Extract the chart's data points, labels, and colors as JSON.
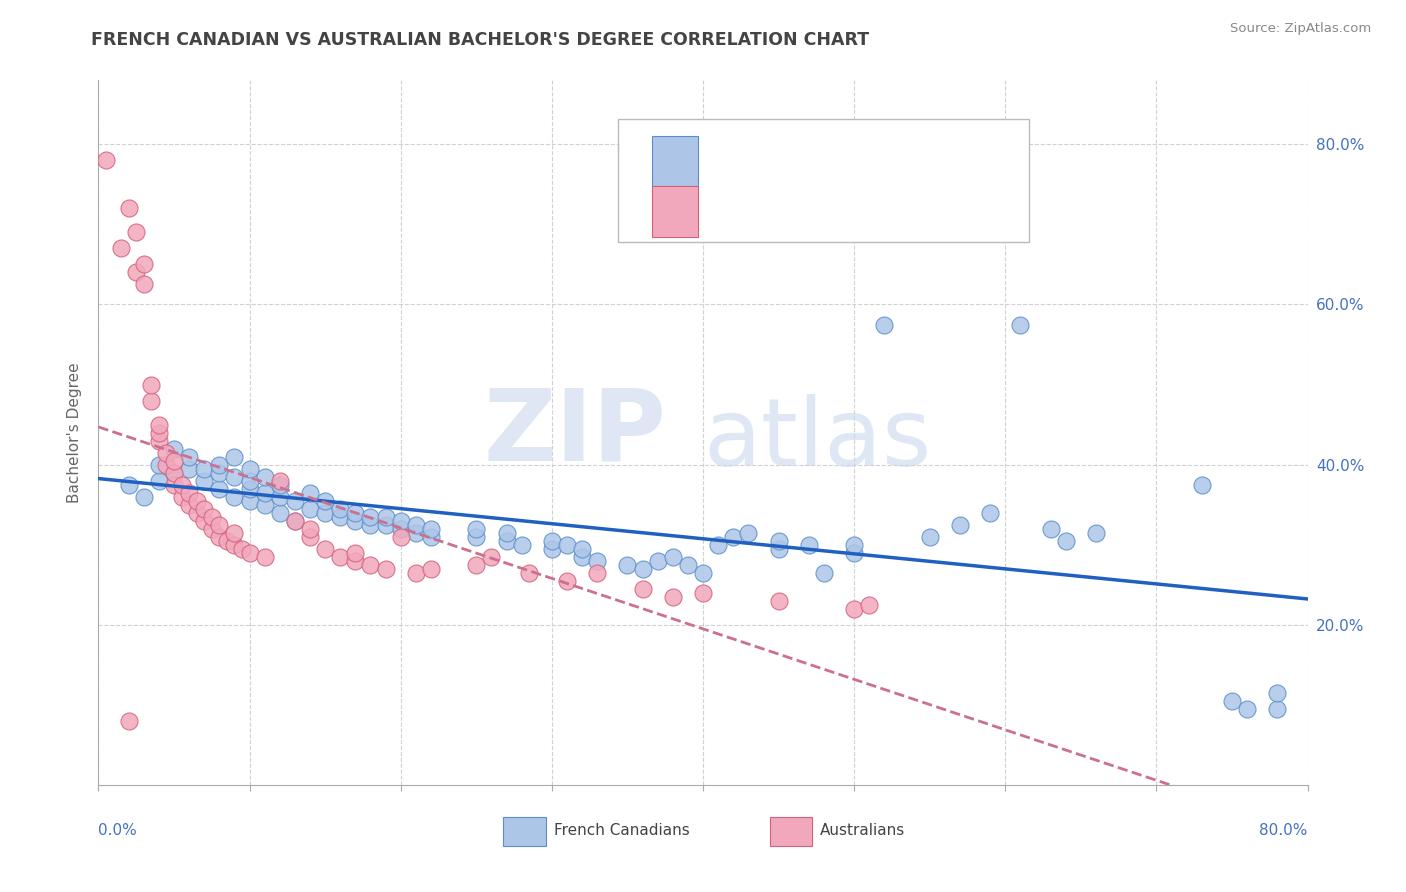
{
  "title": "FRENCH CANADIAN VS BACHELOR'S DEGREE CORRELATION CHART",
  "title_full": "FRENCH CANADIAN VS AUSTRALIAN BACHELOR'S DEGREE CORRELATION CHART",
  "source": "Source: ZipAtlas.com",
  "ylabel": "Bachelor's Degree",
  "xlim": [
    0.0,
    0.8
  ],
  "ylim": [
    0.0,
    0.88
  ],
  "ytick_values": [
    0.2,
    0.4,
    0.6,
    0.8
  ],
  "color_blue": "#adc6e8",
  "color_pink": "#f2a8bc",
  "color_blue_edge": "#5b8ec9",
  "color_pink_edge": "#d4607a",
  "color_trend_blue": "#2060c0",
  "color_trend_pink": "#cc7090",
  "watermark_zip": "ZIP",
  "watermark_atlas": "atlas",
  "blue_points": [
    [
      0.02,
      0.375
    ],
    [
      0.03,
      0.36
    ],
    [
      0.04,
      0.38
    ],
    [
      0.04,
      0.4
    ],
    [
      0.05,
      0.39
    ],
    [
      0.05,
      0.42
    ],
    [
      0.06,
      0.395
    ],
    [
      0.06,
      0.41
    ],
    [
      0.07,
      0.38
    ],
    [
      0.07,
      0.395
    ],
    [
      0.08,
      0.37
    ],
    [
      0.08,
      0.39
    ],
    [
      0.08,
      0.4
    ],
    [
      0.09,
      0.36
    ],
    [
      0.09,
      0.385
    ],
    [
      0.09,
      0.41
    ],
    [
      0.1,
      0.355
    ],
    [
      0.1,
      0.37
    ],
    [
      0.1,
      0.38
    ],
    [
      0.1,
      0.395
    ],
    [
      0.11,
      0.35
    ],
    [
      0.11,
      0.365
    ],
    [
      0.11,
      0.385
    ],
    [
      0.12,
      0.34
    ],
    [
      0.12,
      0.36
    ],
    [
      0.12,
      0.375
    ],
    [
      0.13,
      0.33
    ],
    [
      0.13,
      0.355
    ],
    [
      0.14,
      0.345
    ],
    [
      0.14,
      0.365
    ],
    [
      0.15,
      0.34
    ],
    [
      0.15,
      0.355
    ],
    [
      0.16,
      0.335
    ],
    [
      0.16,
      0.345
    ],
    [
      0.17,
      0.33
    ],
    [
      0.17,
      0.34
    ],
    [
      0.18,
      0.325
    ],
    [
      0.18,
      0.335
    ],
    [
      0.19,
      0.325
    ],
    [
      0.19,
      0.335
    ],
    [
      0.2,
      0.32
    ],
    [
      0.2,
      0.33
    ],
    [
      0.21,
      0.315
    ],
    [
      0.21,
      0.325
    ],
    [
      0.22,
      0.31
    ],
    [
      0.22,
      0.32
    ],
    [
      0.25,
      0.31
    ],
    [
      0.25,
      0.32
    ],
    [
      0.27,
      0.305
    ],
    [
      0.27,
      0.315
    ],
    [
      0.28,
      0.3
    ],
    [
      0.3,
      0.295
    ],
    [
      0.3,
      0.305
    ],
    [
      0.31,
      0.3
    ],
    [
      0.32,
      0.285
    ],
    [
      0.32,
      0.295
    ],
    [
      0.33,
      0.28
    ],
    [
      0.35,
      0.275
    ],
    [
      0.36,
      0.27
    ],
    [
      0.37,
      0.28
    ],
    [
      0.38,
      0.285
    ],
    [
      0.39,
      0.275
    ],
    [
      0.4,
      0.265
    ],
    [
      0.41,
      0.3
    ],
    [
      0.42,
      0.31
    ],
    [
      0.43,
      0.315
    ],
    [
      0.45,
      0.295
    ],
    [
      0.45,
      0.305
    ],
    [
      0.47,
      0.3
    ],
    [
      0.48,
      0.265
    ],
    [
      0.5,
      0.29
    ],
    [
      0.5,
      0.3
    ],
    [
      0.52,
      0.575
    ],
    [
      0.55,
      0.31
    ],
    [
      0.57,
      0.325
    ],
    [
      0.59,
      0.34
    ],
    [
      0.61,
      0.575
    ],
    [
      0.63,
      0.32
    ],
    [
      0.64,
      0.305
    ],
    [
      0.66,
      0.315
    ],
    [
      0.73,
      0.375
    ],
    [
      0.75,
      0.105
    ],
    [
      0.76,
      0.095
    ],
    [
      0.78,
      0.095
    ],
    [
      0.78,
      0.115
    ]
  ],
  "pink_points": [
    [
      0.005,
      0.78
    ],
    [
      0.015,
      0.67
    ],
    [
      0.02,
      0.72
    ],
    [
      0.025,
      0.64
    ],
    [
      0.025,
      0.69
    ],
    [
      0.03,
      0.625
    ],
    [
      0.03,
      0.65
    ],
    [
      0.035,
      0.48
    ],
    [
      0.035,
      0.5
    ],
    [
      0.04,
      0.43
    ],
    [
      0.04,
      0.44
    ],
    [
      0.04,
      0.45
    ],
    [
      0.045,
      0.4
    ],
    [
      0.045,
      0.415
    ],
    [
      0.05,
      0.375
    ],
    [
      0.05,
      0.39
    ],
    [
      0.05,
      0.405
    ],
    [
      0.055,
      0.36
    ],
    [
      0.055,
      0.375
    ],
    [
      0.06,
      0.35
    ],
    [
      0.06,
      0.365
    ],
    [
      0.065,
      0.34
    ],
    [
      0.065,
      0.355
    ],
    [
      0.07,
      0.33
    ],
    [
      0.07,
      0.345
    ],
    [
      0.075,
      0.32
    ],
    [
      0.075,
      0.335
    ],
    [
      0.08,
      0.31
    ],
    [
      0.08,
      0.325
    ],
    [
      0.085,
      0.305
    ],
    [
      0.09,
      0.3
    ],
    [
      0.09,
      0.315
    ],
    [
      0.095,
      0.295
    ],
    [
      0.1,
      0.29
    ],
    [
      0.11,
      0.285
    ],
    [
      0.12,
      0.38
    ],
    [
      0.13,
      0.33
    ],
    [
      0.14,
      0.31
    ],
    [
      0.14,
      0.32
    ],
    [
      0.15,
      0.295
    ],
    [
      0.16,
      0.285
    ],
    [
      0.17,
      0.28
    ],
    [
      0.17,
      0.29
    ],
    [
      0.18,
      0.275
    ],
    [
      0.19,
      0.27
    ],
    [
      0.2,
      0.31
    ],
    [
      0.21,
      0.265
    ],
    [
      0.22,
      0.27
    ],
    [
      0.25,
      0.275
    ],
    [
      0.26,
      0.285
    ],
    [
      0.285,
      0.265
    ],
    [
      0.31,
      0.255
    ],
    [
      0.33,
      0.265
    ],
    [
      0.36,
      0.245
    ],
    [
      0.38,
      0.235
    ],
    [
      0.4,
      0.24
    ],
    [
      0.45,
      0.23
    ],
    [
      0.5,
      0.22
    ],
    [
      0.51,
      0.225
    ],
    [
      0.02,
      0.08
    ]
  ]
}
